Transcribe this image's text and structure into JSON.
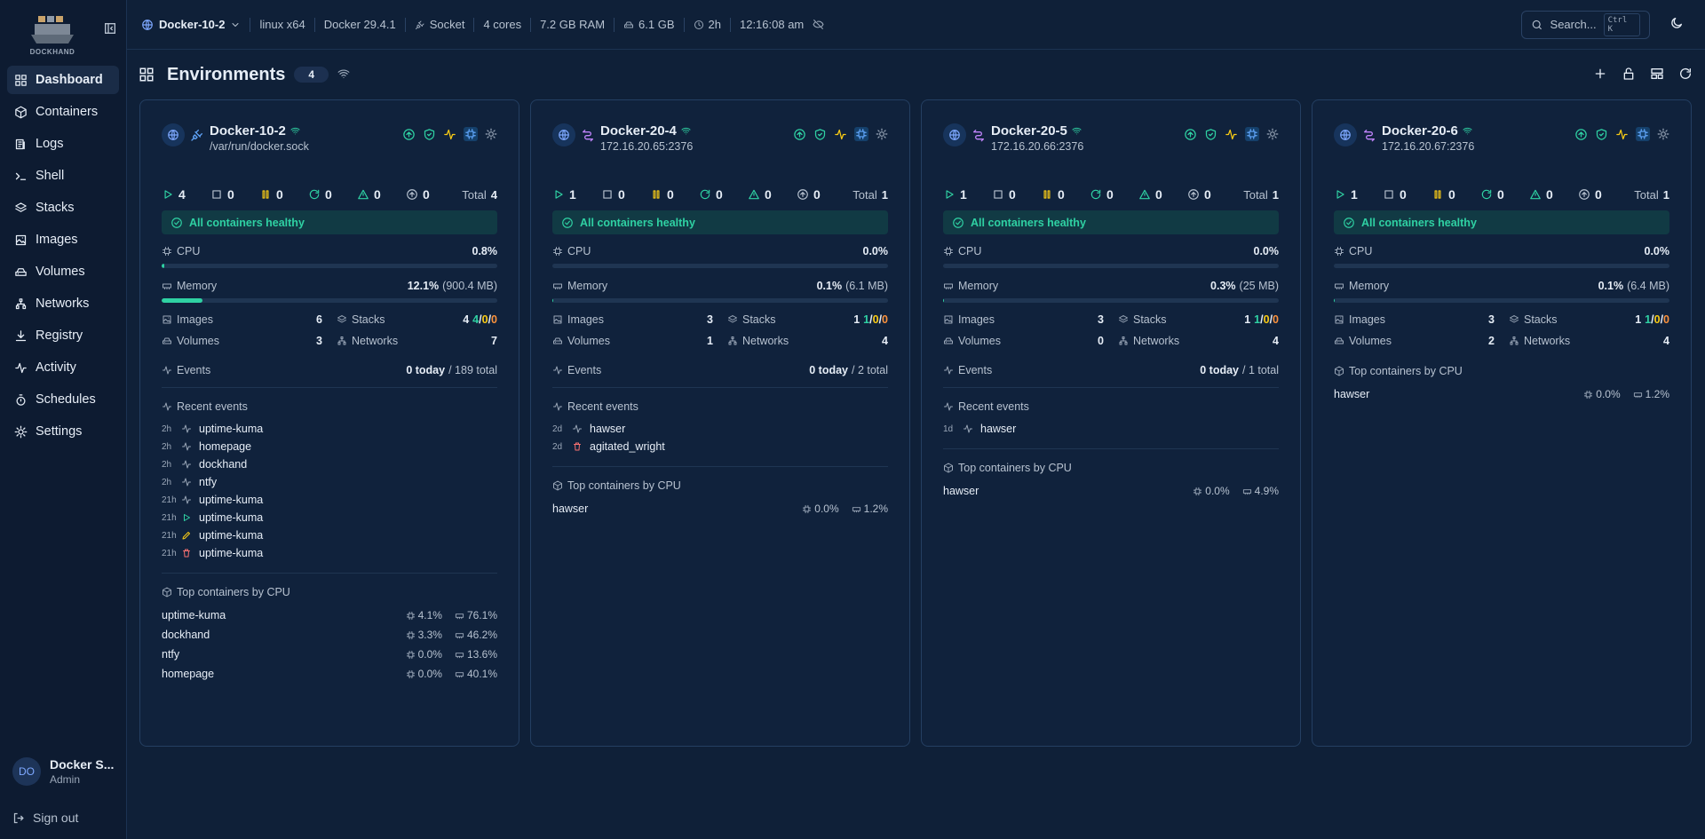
{
  "sidebar": {
    "logo": "DOCKHAND",
    "nav": [
      {
        "label": "Dashboard",
        "icon": "grid",
        "active": true
      },
      {
        "label": "Containers",
        "icon": "box"
      },
      {
        "label": "Logs",
        "icon": "logs"
      },
      {
        "label": "Shell",
        "icon": "shell"
      },
      {
        "label": "Stacks",
        "icon": "layers"
      },
      {
        "label": "Images",
        "icon": "image"
      },
      {
        "label": "Volumes",
        "icon": "disk"
      },
      {
        "label": "Networks",
        "icon": "network"
      },
      {
        "label": "Registry",
        "icon": "download"
      },
      {
        "label": "Activity",
        "icon": "activity"
      },
      {
        "label": "Schedules",
        "icon": "timer"
      },
      {
        "label": "Settings",
        "icon": "gear"
      }
    ],
    "user": {
      "initials": "DO",
      "name": "Docker S...",
      "role": "Admin"
    },
    "sign_out": "Sign out"
  },
  "topbar": {
    "environment": "Docker-10-2",
    "info": [
      "linux x64",
      "Docker 29.4.1",
      "Socket",
      "4 cores",
      "7.2 GB RAM",
      "6.1 GB",
      "2h",
      "12:16:08 am"
    ],
    "search": "Search...",
    "shortcut": "Ctrl K"
  },
  "header": {
    "title": "Environments",
    "count": "4"
  },
  "labels": {
    "total": "Total",
    "cpu": "CPU",
    "memory": "Memory",
    "images": "Images",
    "stacks": "Stacks",
    "volumes": "Volumes",
    "networks": "Networks",
    "events": "Events",
    "recent_events": "Recent events",
    "top_containers": "Top containers by CPU"
  },
  "environments": [
    {
      "name": "Docker-10-2",
      "address": "/var/run/docker.sock",
      "connection": "socket",
      "counts": {
        "running": 4,
        "stopped": 0,
        "paused": 0,
        "restarting": 0,
        "unhealthy": 0,
        "updates": 0
      },
      "total": 4,
      "health": "All containers healthy",
      "cpu": {
        "value": 0.8,
        "label": "0.8%"
      },
      "memory": {
        "value": 12.1,
        "label": "12.1%",
        "detail": "(900.4 MB)"
      },
      "images": 6,
      "stacks": {
        "total": 4,
        "running": 4,
        "partial": 0,
        "stopped": 0
      },
      "volumes": 3,
      "networks": 7,
      "events": {
        "today": "0 today",
        "total": "/ 189 total"
      },
      "recent_events": [
        {
          "time": "2h",
          "icon": "activity",
          "name": "uptime-kuma"
        },
        {
          "time": "2h",
          "icon": "activity",
          "name": "homepage"
        },
        {
          "time": "2h",
          "icon": "activity",
          "name": "dockhand"
        },
        {
          "time": "2h",
          "icon": "activity",
          "name": "ntfy"
        },
        {
          "time": "21h",
          "icon": "activity",
          "name": "uptime-kuma"
        },
        {
          "time": "21h",
          "icon": "play",
          "name": "uptime-kuma"
        },
        {
          "time": "21h",
          "icon": "pencil",
          "name": "uptime-kuma"
        },
        {
          "time": "21h",
          "icon": "trash",
          "name": "uptime-kuma"
        }
      ],
      "top_containers": [
        {
          "name": "uptime-kuma",
          "cpu": "4.1%",
          "memory": "76.1%"
        },
        {
          "name": "dockhand",
          "cpu": "3.3%",
          "memory": "46.2%"
        },
        {
          "name": "ntfy",
          "cpu": "0.0%",
          "memory": "13.6%"
        },
        {
          "name": "homepage",
          "cpu": "0.0%",
          "memory": "40.1%"
        }
      ]
    },
    {
      "name": "Docker-20-4",
      "address": "172.16.20.65:2376",
      "connection": "tcp",
      "counts": {
        "running": 1,
        "stopped": 0,
        "paused": 0,
        "restarting": 0,
        "unhealthy": 0,
        "updates": 0
      },
      "total": 1,
      "health": "All containers healthy",
      "cpu": {
        "value": 0.0,
        "label": "0.0%"
      },
      "memory": {
        "value": 0.1,
        "label": "0.1%",
        "detail": "(6.1 MB)"
      },
      "images": 3,
      "stacks": {
        "total": 1,
        "running": 1,
        "partial": 0,
        "stopped": 0
      },
      "volumes": 1,
      "networks": 4,
      "events": {
        "today": "0 today",
        "total": "/ 2 total"
      },
      "recent_events": [
        {
          "time": "2d",
          "icon": "activity",
          "name": "hawser"
        },
        {
          "time": "2d",
          "icon": "trash",
          "name": "agitated_wright"
        }
      ],
      "top_containers": [
        {
          "name": "hawser",
          "cpu": "0.0%",
          "memory": "1.2%"
        }
      ]
    },
    {
      "name": "Docker-20-5",
      "address": "172.16.20.66:2376",
      "connection": "tcp",
      "counts": {
        "running": 1,
        "stopped": 0,
        "paused": 0,
        "restarting": 0,
        "unhealthy": 0,
        "updates": 0
      },
      "total": 1,
      "health": "All containers healthy",
      "cpu": {
        "value": 0.0,
        "label": "0.0%"
      },
      "memory": {
        "value": 0.3,
        "label": "0.3%",
        "detail": "(25 MB)"
      },
      "images": 3,
      "stacks": {
        "total": 1,
        "running": 1,
        "partial": 0,
        "stopped": 0
      },
      "volumes": 0,
      "networks": 4,
      "events": {
        "today": "0 today",
        "total": "/ 1 total"
      },
      "recent_events": [
        {
          "time": "1d",
          "icon": "activity",
          "name": "hawser"
        }
      ],
      "top_containers": [
        {
          "name": "hawser",
          "cpu": "0.0%",
          "memory": "4.9%"
        }
      ]
    },
    {
      "name": "Docker-20-6",
      "address": "172.16.20.67:2376",
      "connection": "tcp",
      "counts": {
        "running": 1,
        "stopped": 0,
        "paused": 0,
        "restarting": 0,
        "unhealthy": 0,
        "updates": 0
      },
      "total": 1,
      "health": "All containers healthy",
      "cpu": {
        "value": 0.0,
        "label": "0.0%"
      },
      "memory": {
        "value": 0.1,
        "label": "0.1%",
        "detail": "(6.4 MB)"
      },
      "images": 3,
      "stacks": {
        "total": 1,
        "running": 1,
        "partial": 0,
        "stopped": 0
      },
      "volumes": 2,
      "networks": 4,
      "top_containers": [
        {
          "name": "hawser",
          "cpu": "0.0%",
          "memory": "1.2%"
        }
      ]
    }
  ]
}
